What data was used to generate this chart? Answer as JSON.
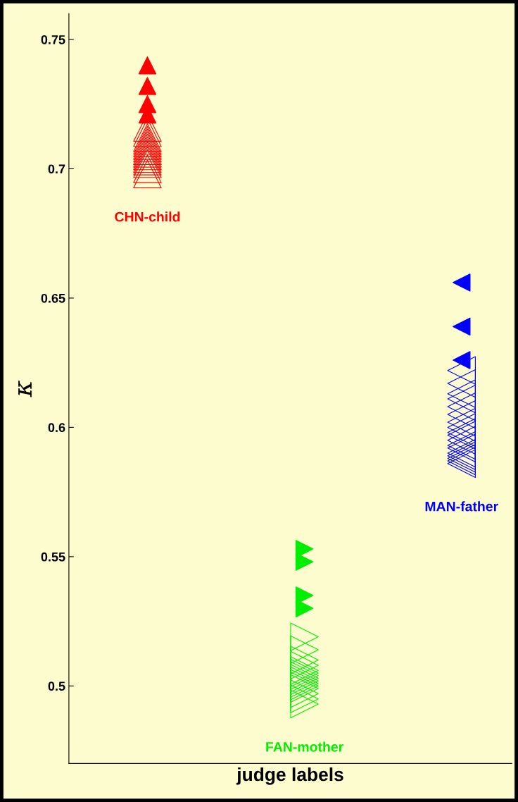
{
  "chart_data": {
    "type": "scatter",
    "xlabel": "judge labels",
    "ylabel": "κ",
    "categories": [
      null,
      null,
      null
    ],
    "annotations": [
      "CHN-child",
      "FAN-mother",
      "MAN-father"
    ],
    "ylim": [
      0.47,
      0.76
    ],
    "yticks": [
      0.5,
      0.55,
      0.6,
      0.65,
      0.7,
      0.75
    ],
    "tick_labels": "y",
    "grid": false,
    "legend": false,
    "series": [
      {
        "colors": [
          "#ff0000",
          "#00ee00",
          "#0000ff"
        ],
        "marker": "triangle",
        "values": [
          0.74,
          0.553,
          0.656
        ]
      },
      {
        "colors": [
          "#ff0000",
          "#00ee00",
          "#0000ff"
        ],
        "marker": "triangle",
        "values": [
          0.732,
          0.548,
          0.639
        ]
      },
      {
        "colors": [
          "#ff0000",
          "#00ee00",
          "#0000ff"
        ],
        "marker": "triangle",
        "values": [
          0.725,
          0.535,
          0.626
        ]
      },
      {
        "colors": [
          "#ff0000",
          "#00ee00",
          "#0000ff"
        ],
        "marker": "triangle",
        "values": [
          0.721,
          0.53,
          null
        ]
      },
      {
        "colors": [
          "#ff0000",
          "#00ee00",
          "#0000ff"
        ],
        "marker": "triangle-open",
        "values": [
          0.716,
          0.519,
          0.622
        ]
      },
      {
        "colors": [
          "#ff0000",
          "#00ee00",
          "#0000ff"
        ],
        "marker": "triangle-open",
        "values": [
          0.714,
          0.514,
          0.617
        ]
      },
      {
        "colors": [
          "#ff0000",
          "#00ee00",
          "#0000ff"
        ],
        "marker": "triangle-open",
        "values": [
          0.712,
          0.51,
          0.613
        ]
      },
      {
        "colors": [
          "#ff0000",
          "#00ee00",
          "#0000ff"
        ],
        "marker": "triangle-open",
        "values": [
          0.711,
          0.508,
          0.611
        ]
      },
      {
        "colors": [
          "#ff0000",
          "#00ee00",
          "#0000ff"
        ],
        "marker": "triangle-open",
        "values": [
          0.71,
          0.506,
          0.608
        ]
      },
      {
        "colors": [
          "#ff0000",
          "#00ee00",
          "#0000ff"
        ],
        "marker": "triangle-open",
        "values": [
          0.709,
          0.505,
          0.605
        ]
      },
      {
        "colors": [
          "#ff0000",
          "#00ee00",
          "#0000ff"
        ],
        "marker": "triangle-open",
        "values": [
          0.708,
          0.504,
          0.602
        ]
      },
      {
        "colors": [
          "#ff0000",
          "#00ee00",
          "#0000ff"
        ],
        "marker": "triangle-open",
        "values": [
          0.707,
          0.503,
          0.6
        ]
      },
      {
        "colors": [
          "#ff0000",
          "#00ee00",
          "#0000ff"
        ],
        "marker": "triangle-open",
        "values": [
          0.706,
          0.502,
          0.598
        ]
      },
      {
        "colors": [
          "#ff0000",
          "#00ee00",
          "#0000ff"
        ],
        "marker": "triangle-open",
        "values": [
          0.705,
          0.501,
          0.597
        ]
      },
      {
        "colors": [
          "#ff0000",
          "#00ee00",
          "#0000ff"
        ],
        "marker": "triangle-open",
        "values": [
          0.704,
          0.5,
          0.595
        ]
      },
      {
        "colors": [
          "#ff0000",
          "#00ee00",
          "#0000ff"
        ],
        "marker": "triangle-open",
        "values": [
          0.703,
          0.499,
          0.593
        ]
      },
      {
        "colors": [
          "#ff0000",
          "#00ee00",
          "#0000ff"
        ],
        "marker": "triangle-open",
        "values": [
          0.702,
          0.497,
          0.592
        ]
      },
      {
        "colors": [
          "#ff0000",
          "#00ee00",
          "#0000ff"
        ],
        "marker": "triangle-open",
        "values": [
          0.7,
          0.495,
          0.59
        ]
      },
      {
        "colors": [
          "#ff0000",
          "#00ee00",
          "#0000ff"
        ],
        "marker": "triangle-open",
        "values": [
          0.698,
          0.493,
          0.589
        ]
      },
      {
        "colors": [
          "#ff0000",
          "#00ee00",
          "#0000ff"
        ],
        "marker": "triangle-open",
        "values": [
          null,
          null,
          0.588
        ]
      },
      {
        "colors": [
          "#ff0000",
          "#00ee00",
          "#0000ff"
        ],
        "marker": "triangle-open",
        "values": [
          null,
          null,
          0.587
        ]
      },
      {
        "colors": [
          "#ff0000",
          "#00ee00",
          "#0000ff"
        ],
        "marker": "triangle-open",
        "values": [
          null,
          null,
          0.586
        ]
      }
    ]
  }
}
